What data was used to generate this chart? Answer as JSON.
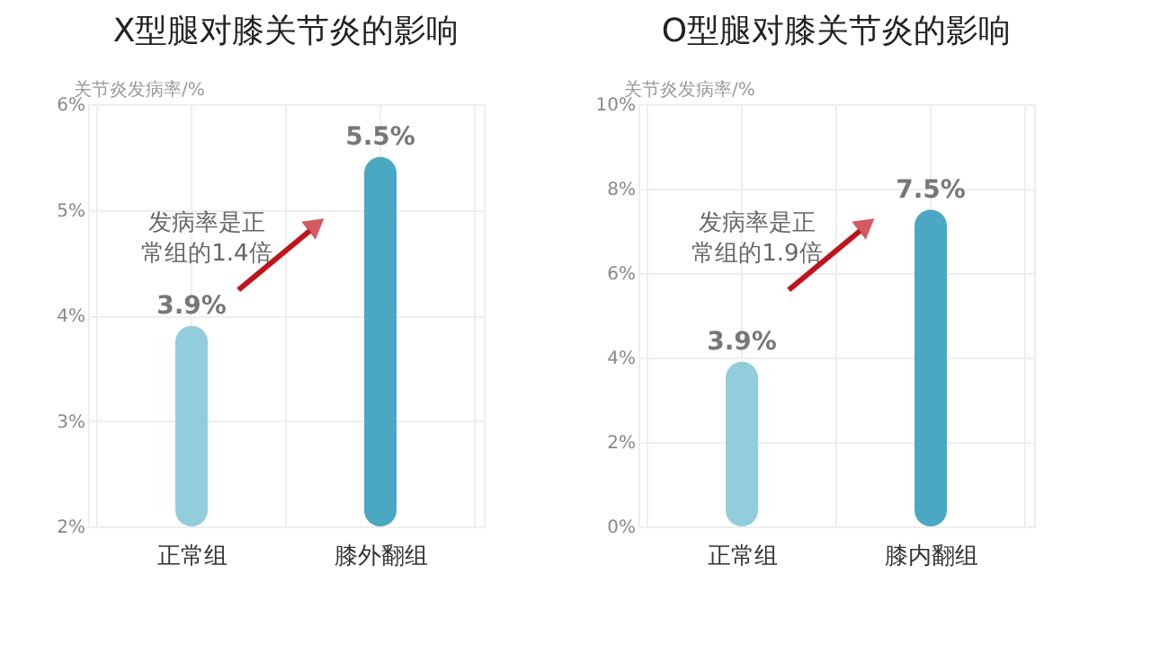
{
  "chart_data": [
    {
      "type": "bar",
      "title": "X型腿对膝关节炎的影响",
      "ylabel": "关节炎发病率/%",
      "categories": [
        "正常组",
        "膝外翻组"
      ],
      "values": [
        3.9,
        5.5
      ],
      "colors": [
        "#92cddb",
        "#4aa8c2"
      ],
      "value_labels": [
        "3.9%",
        "5.5%"
      ],
      "ylim": [
        2,
        6
      ],
      "yticks": [
        {
          "value": 2,
          "label": "2%"
        },
        {
          "value": 3,
          "label": "3%"
        },
        {
          "value": 4,
          "label": "4%"
        },
        {
          "value": 5,
          "label": "5%"
        },
        {
          "value": 6,
          "label": "6%"
        }
      ],
      "grid": true,
      "annotations": [
        "发病率是正常组的1.4倍"
      ]
    },
    {
      "type": "bar",
      "title": "O型腿对膝关节炎的影响",
      "ylabel": "关节炎发病率/%",
      "categories": [
        "正常组",
        "膝内翻组"
      ],
      "values": [
        3.9,
        7.5
      ],
      "colors": [
        "#92cddb",
        "#4aa8c2"
      ],
      "value_labels": [
        "3.9%",
        "7.5%"
      ],
      "ylim": [
        0,
        10
      ],
      "yticks": [
        {
          "value": 0,
          "label": "0%"
        },
        {
          "value": 2,
          "label": "2%"
        },
        {
          "value": 4,
          "label": "4%"
        },
        {
          "value": 6,
          "label": "6%"
        },
        {
          "value": 8,
          "label": "8%"
        },
        {
          "value": 10,
          "label": "10%"
        }
      ],
      "grid": true,
      "annotations": [
        "发病率是正常组的1.9倍"
      ]
    }
  ]
}
